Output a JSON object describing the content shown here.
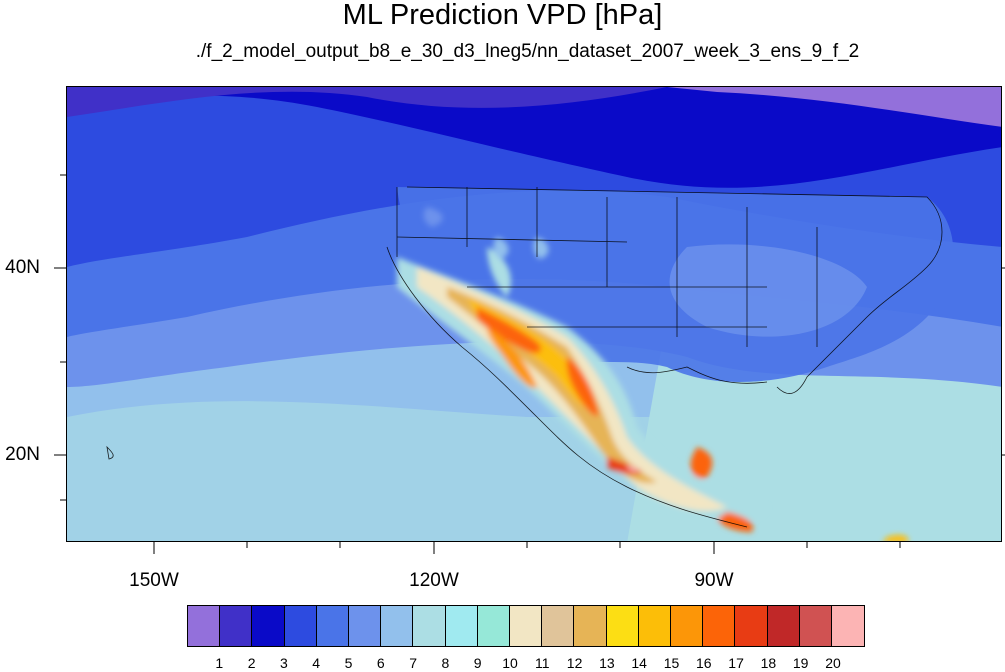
{
  "title": "ML Prediction VPD [hPa]",
  "subtitle": "./f_2_model_output_b8_e_30_d3_lneg5/nn_dataset_2007_week_3_ens_9_f_2",
  "map": {
    "lon_range": [
      -160,
      -60
    ],
    "lat_range": [
      11,
      60
    ],
    "lon_tick_labels": [
      {
        "lon": -150,
        "label": "150W"
      },
      {
        "lon": -120,
        "label": "120W"
      },
      {
        "lon": -90,
        "label": "90W"
      }
    ],
    "lat_tick_labels": [
      {
        "lat": 40,
        "label": "40N"
      },
      {
        "lat": 20,
        "label": "20N"
      }
    ]
  },
  "colorbar": {
    "colors": [
      "#9370db",
      "#4030c8",
      "#0a0ac8",
      "#2d4be0",
      "#4a74e8",
      "#6d92ec",
      "#92c0ec",
      "#acdee4",
      "#a0eaf0",
      "#96e8d8",
      "#f2e6c4",
      "#e0c49a",
      "#e6b456",
      "#fcde14",
      "#fcbe08",
      "#fc9608",
      "#fc6408",
      "#e83c14",
      "#c02828",
      "#d05252",
      "#fcb4b4"
    ],
    "labels": [
      "1",
      "2",
      "3",
      "4",
      "5",
      "6",
      "7",
      "8",
      "9",
      "10",
      "11",
      "12",
      "13",
      "14",
      "15",
      "16",
      "17",
      "18",
      "19",
      "20"
    ]
  }
}
